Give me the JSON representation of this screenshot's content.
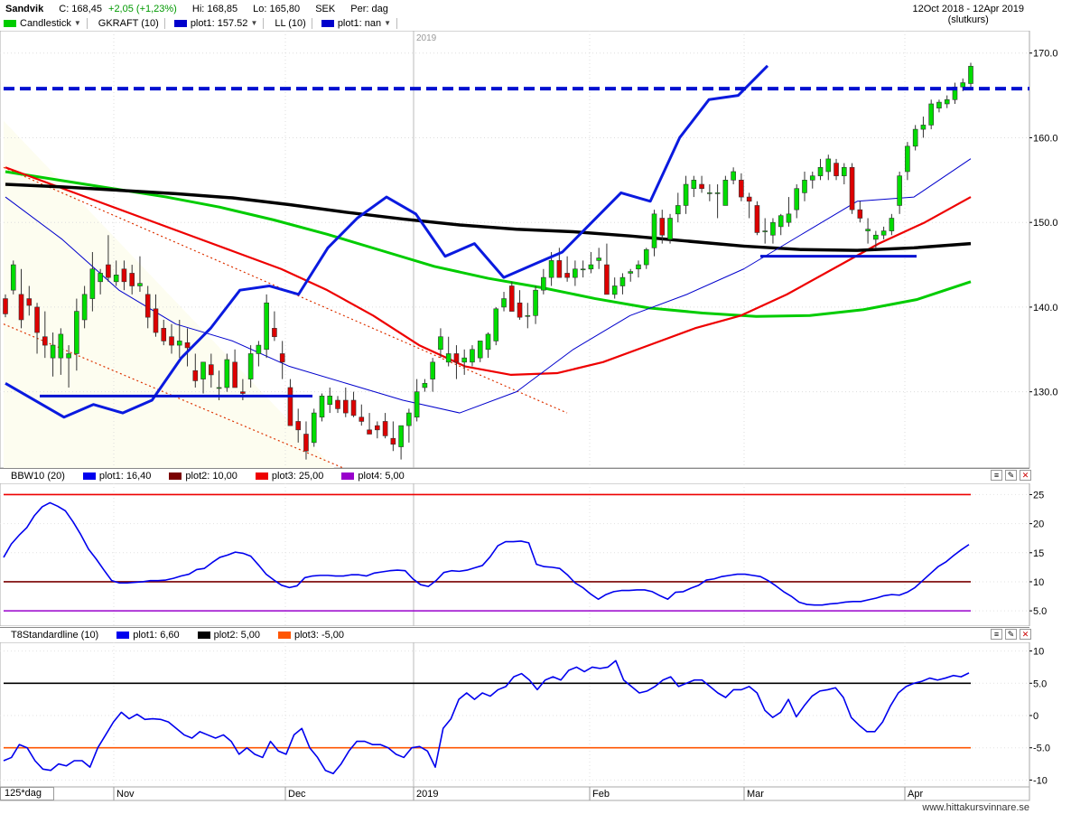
{
  "header": {
    "symbol": "Sandvik",
    "close": "C: 168,45",
    "change": "+2,05 (+1,23%)",
    "hi": "Hi: 168,85",
    "lo": "Lo: 165,80",
    "currency": "SEK",
    "period": "Per: dag",
    "date_range": "12Oct 2018 - 12Apr 2019",
    "price_type": "(slutkurs)"
  },
  "legend_main": [
    {
      "label": "Candlestick",
      "color": "#00cc00",
      "dropdown": true
    },
    {
      "label": "GKRAFT (10)",
      "color": "",
      "dropdown": false
    },
    {
      "label": "plot1: 157.52",
      "color": "#0000cc",
      "dropdown": true
    },
    {
      "label": "LL (10)",
      "color": "",
      "dropdown": false
    },
    {
      "label": "plot1: nan",
      "color": "#0000cc",
      "dropdown": true
    }
  ],
  "legend_bbw": [
    {
      "label": "BBW10 (20)",
      "color": ""
    },
    {
      "label": "plot1: 16,40",
      "color": "#0000ee"
    },
    {
      "label": "plot2: 10,00",
      "color": "#7a0000"
    },
    {
      "label": "plot3: 25,00",
      "color": "#ee0000"
    },
    {
      "label": "plot4: 5,00",
      "color": "#9900cc"
    }
  ],
  "legend_t8": [
    {
      "label": "T8Standardline (10)",
      "color": ""
    },
    {
      "label": "plot1: 6,60",
      "color": "#0000ee"
    },
    {
      "label": "plot2: 5,00",
      "color": "#000000"
    },
    {
      "label": "plot3: -5,00",
      "color": "#ff5500"
    }
  ],
  "footer": {
    "resolution": "125*dag",
    "watermark": "www.hittakursvinnare.se",
    "year_marker": "2019"
  },
  "colors": {
    "up": "#00dd00",
    "down": "#dd0000",
    "sma_black": "#000000",
    "sma_green": "#00cc00",
    "sma_red": "#ee0000",
    "indicator_blue": "#0000ee"
  },
  "chart_data": [
    {
      "type": "candlestick",
      "name": "Sandvik",
      "ylim": [
        121,
        172
      ],
      "y_ticks": [
        "170.0",
        "160.0",
        "150.0",
        "140.0",
        "130.0"
      ],
      "x_ticks": [
        "Nov",
        "Dec",
        "2019",
        "Feb",
        "Mar",
        "Apr"
      ],
      "candles_ohlc": [
        [
          141.0,
          141.5,
          138.8,
          139.2
        ],
        [
          142.0,
          145.5,
          141.5,
          145.0
        ],
        [
          141.5,
          144.5,
          137.5,
          138.5
        ],
        [
          141.0,
          142.5,
          139.0,
          140.2
        ],
        [
          140.0,
          140.5,
          134.5,
          137.0
        ],
        [
          136.5,
          139.5,
          134.0,
          135.5
        ],
        [
          134.0,
          137.0,
          131.8,
          135.5
        ],
        [
          134.0,
          137.5,
          132.0,
          136.8
        ],
        [
          134.0,
          135.5,
          130.5,
          134.5
        ],
        [
          134.5,
          141.0,
          132.5,
          139.5
        ],
        [
          138.5,
          142.5,
          137.5,
          141.5
        ],
        [
          141.0,
          146.5,
          139.5,
          144.5
        ],
        [
          143.0,
          144.5,
          141.5,
          144.0
        ],
        [
          145.0,
          148.5,
          143.0,
          143.5
        ],
        [
          143.0,
          145.5,
          142.5,
          143.8
        ],
        [
          144.5,
          145.5,
          142.0,
          143.0
        ],
        [
          144.0,
          145.0,
          141.5,
          142.5
        ],
        [
          142.5,
          146.0,
          141.8,
          142.8
        ],
        [
          141.5,
          142.5,
          137.5,
          138.8
        ],
        [
          139.8,
          141.5,
          136.5,
          137.0
        ],
        [
          137.5,
          138.5,
          135.5,
          136.0
        ],
        [
          136.5,
          138.0,
          134.5,
          135.5
        ],
        [
          135.5,
          138.5,
          134.0,
          136.0
        ],
        [
          135.8,
          137.5,
          133.0,
          135.2
        ],
        [
          132.5,
          134.5,
          130.5,
          131.3
        ],
        [
          131.5,
          133.5,
          129.8,
          133.5
        ],
        [
          133.2,
          134.5,
          130.5,
          132.0
        ],
        [
          130.5,
          132.5,
          129.0,
          130.5
        ],
        [
          130.5,
          134.5,
          130.0,
          133.8
        ],
        [
          133.5,
          135.0,
          131.5,
          130.5
        ],
        [
          130.0,
          131.5,
          129.0,
          129.8
        ],
        [
          131.5,
          135.5,
          130.5,
          134.5
        ],
        [
          134.5,
          136.0,
          133.0,
          135.5
        ],
        [
          135.0,
          141.5,
          134.0,
          140.5
        ],
        [
          137.5,
          139.5,
          136.0,
          136.5
        ],
        [
          134.5,
          136.0,
          131.5,
          133.5
        ],
        [
          130.5,
          131.5,
          126.0,
          126.0
        ],
        [
          126.5,
          128.0,
          124.0,
          125.5
        ],
        [
          125.0,
          126.5,
          122.0,
          123.0
        ],
        [
          124.0,
          128.0,
          123.5,
          127.5
        ],
        [
          127.0,
          129.8,
          126.5,
          129.5
        ],
        [
          128.5,
          130.5,
          127.5,
          129.5
        ],
        [
          129.0,
          129.5,
          127.5,
          128.0
        ],
        [
          129.0,
          130.5,
          127.0,
          127.5
        ],
        [
          129.0,
          130.0,
          127.0,
          127.2
        ],
        [
          127.0,
          128.5,
          126.0,
          126.5
        ],
        [
          125.5,
          127.5,
          125.0,
          125.0
        ],
        [
          126.0,
          126.5,
          124.5,
          125.5
        ],
        [
          126.5,
          127.5,
          124.5,
          124.8
        ],
        [
          124.5,
          126.5,
          123.0,
          123.8
        ],
        [
          123.5,
          125.5,
          122.0,
          126.0
        ],
        [
          126.0,
          128.0,
          124.0,
          127.5
        ],
        [
          127.0,
          131.5,
          126.5,
          130.0
        ],
        [
          130.5,
          131.5,
          130.0,
          131.0
        ],
        [
          131.5,
          134.0,
          130.0,
          133.5
        ],
        [
          135.0,
          137.5,
          134.0,
          136.5
        ],
        [
          133.5,
          136.5,
          133.0,
          134.5
        ],
        [
          134.5,
          135.5,
          131.5,
          133.5
        ],
        [
          133.5,
          135.0,
          132.0,
          134.0
        ],
        [
          133.5,
          135.5,
          133.0,
          135.0
        ],
        [
          134.0,
          136.0,
          133.5,
          136.0
        ],
        [
          135.0,
          137.0,
          134.0,
          136.8
        ],
        [
          136.0,
          140.0,
          135.5,
          139.8
        ],
        [
          140.0,
          141.8,
          139.5,
          141.0
        ],
        [
          142.5,
          143.0,
          139.5,
          139.5
        ],
        [
          140.5,
          142.0,
          138.5,
          138.8
        ],
        [
          139.0,
          140.5,
          137.5,
          139.0
        ],
        [
          139.0,
          142.5,
          138.0,
          142.0
        ],
        [
          142.0,
          144.5,
          141.5,
          143.5
        ],
        [
          143.5,
          146.5,
          142.5,
          145.5
        ],
        [
          145.5,
          147.0,
          144.5,
          143.5
        ],
        [
          144.0,
          146.0,
          143.0,
          143.5
        ],
        [
          143.5,
          145.5,
          142.5,
          144.5
        ],
        [
          144.5,
          145.5,
          143.5,
          144.5
        ],
        [
          144.5,
          146.5,
          144.0,
          145.0
        ],
        [
          145.5,
          147.0,
          144.5,
          145.8
        ],
        [
          145.0,
          147.5,
          141.5,
          141.5
        ],
        [
          141.5,
          143.5,
          141.0,
          142.5
        ],
        [
          142.5,
          144.0,
          141.5,
          143.5
        ],
        [
          144.0,
          144.5,
          143.0,
          144.2
        ],
        [
          144.5,
          145.5,
          143.5,
          145.0
        ],
        [
          145.0,
          147.0,
          144.5,
          146.8
        ],
        [
          147.0,
          151.5,
          146.0,
          151.0
        ],
        [
          150.5,
          151.5,
          147.5,
          148.5
        ],
        [
          148.0,
          151.0,
          147.5,
          150.5
        ],
        [
          151.0,
          153.5,
          150.0,
          152.0
        ],
        [
          152.0,
          155.5,
          151.0,
          154.5
        ],
        [
          154.0,
          155.5,
          153.0,
          155.0
        ],
        [
          154.5,
          155.5,
          153.5,
          154.0
        ],
        [
          153.5,
          154.5,
          152.5,
          153.5
        ],
        [
          153.5,
          154.5,
          150.5,
          153.5
        ],
        [
          152.0,
          155.5,
          152.0,
          155.0
        ],
        [
          155.0,
          156.5,
          154.5,
          156.0
        ],
        [
          155.0,
          155.8,
          152.5,
          153.0
        ],
        [
          153.0,
          153.5,
          150.5,
          152.5
        ],
        [
          152.0,
          152.5,
          148.5,
          148.8
        ],
        [
          149.0,
          150.5,
          147.5,
          149.0
        ],
        [
          148.5,
          150.5,
          147.5,
          150.0
        ],
        [
          149.5,
          151.0,
          148.5,
          150.8
        ],
        [
          150.0,
          153.0,
          149.5,
          151.0
        ],
        [
          151.5,
          154.5,
          150.5,
          154.0
        ],
        [
          153.5,
          156.0,
          152.5,
          155.0
        ],
        [
          155.0,
          156.0,
          154.0,
          155.5
        ],
        [
          155.5,
          157.5,
          155.0,
          156.5
        ],
        [
          156.0,
          158.0,
          155.0,
          157.5
        ],
        [
          157.0,
          157.5,
          155.0,
          155.5
        ],
        [
          155.5,
          157.0,
          154.5,
          156.5
        ],
        [
          156.5,
          157.0,
          151.0,
          151.5
        ],
        [
          151.5,
          152.5,
          150.0,
          150.5
        ],
        [
          149.0,
          150.5,
          147.5,
          149.2
        ],
        [
          148.0,
          149.0,
          147.0,
          148.5
        ],
        [
          148.5,
          149.5,
          148.0,
          149.0
        ],
        [
          149.0,
          151.0,
          148.5,
          150.5
        ],
        [
          152.0,
          156.0,
          151.0,
          155.5
        ],
        [
          156.0,
          159.5,
          155.0,
          159.0
        ],
        [
          159.0,
          161.5,
          158.5,
          161.0
        ],
        [
          161.0,
          162.5,
          160.0,
          161.5
        ],
        [
          161.5,
          164.5,
          161.0,
          164.0
        ],
        [
          163.5,
          164.5,
          163.0,
          164.2
        ],
        [
          164.0,
          165.0,
          163.5,
          164.5
        ],
        [
          164.5,
          166.5,
          164.0,
          166.0
        ],
        [
          166.0,
          167.0,
          165.5,
          166.5
        ],
        [
          166.4,
          168.85,
          165.8,
          168.45
        ]
      ],
      "lines": [
        {
          "name": "SMA black (approx.)",
          "color": "#000000",
          "values": [
            154.5,
            154.2,
            153.8,
            153.4,
            152.9,
            152.1,
            151.2,
            150.4,
            149.7,
            149.2,
            148.9,
            148.4,
            147.8,
            147.2,
            146.8,
            146.7,
            147.0,
            147.5
          ]
        },
        {
          "name": "SMA green (approx.)",
          "color": "#00cc00",
          "values": [
            156.0,
            155.0,
            154.0,
            153.0,
            151.8,
            150.3,
            148.6,
            146.7,
            144.8,
            143.4,
            142.3,
            141.0,
            139.9,
            139.3,
            138.9,
            139.0,
            139.7,
            140.9,
            143.0
          ]
        },
        {
          "name": "SMA red (approx.)",
          "color": "#ee0000",
          "values": [
            156.5,
            154.5,
            152.5,
            150.5,
            148.5,
            146.5,
            144.5,
            142.0,
            139.0,
            135.5,
            133.0,
            132.0,
            132.2,
            133.5,
            135.5,
            137.5,
            139.0,
            141.5,
            144.5,
            147.5,
            150.0,
            153.0
          ]
        },
        {
          "name": "GKRAFT (approx.)",
          "color": "#0000cc",
          "values": [
            153.0,
            148.0,
            142.0,
            138.0,
            136.0,
            133.0,
            131.0,
            129.0,
            127.5,
            130.0,
            135.0,
            139.0,
            141.5,
            144.5,
            148.5,
            152.5,
            153.0,
            157.52
          ]
        },
        {
          "name": "LL (approx.)",
          "color": "#0000ee",
          "values": [
            131.0,
            129.0,
            127.0,
            128.5,
            127.5,
            129.0,
            134.0,
            137.5,
            142.0,
            142.5,
            141.5,
            147.0,
            150.5,
            153.0,
            151.0,
            146.0,
            147.5,
            143.5,
            145.0,
            146.5,
            150.0,
            153.5,
            152.5,
            160.0,
            164.5,
            165.0,
            168.5
          ]
        }
      ],
      "horizontal_levels": [
        165.8,
        129.5,
        146.0
      ]
    },
    {
      "type": "line",
      "name": "BBW10 (20)",
      "ylim": [
        3,
        26
      ],
      "y_ticks": [
        "25",
        "20",
        "15",
        "10",
        "5.0"
      ],
      "reference_levels": [
        {
          "value": 25,
          "color": "#ee0000"
        },
        {
          "value": 10,
          "color": "#7a0000"
        },
        {
          "value": 5,
          "color": "#9900cc"
        }
      ],
      "values": [
        14.2,
        16.5,
        18.0,
        19.3,
        21.4,
        22.9,
        23.6,
        23.0,
        22.2,
        20.3,
        18.1,
        15.6,
        13.9,
        12.0,
        10.2,
        9.8,
        9.8,
        9.9,
        10.0,
        10.2,
        10.2,
        10.3,
        10.6,
        11.0,
        11.3,
        12.1,
        12.3,
        13.3,
        14.2,
        14.6,
        15.1,
        14.9,
        14.4,
        12.9,
        11.3,
        10.3,
        9.4,
        9.0,
        9.3,
        10.7,
        11.0,
        11.1,
        11.1,
        11.0,
        11.0,
        11.2,
        11.2,
        11.0,
        11.5,
        11.7,
        11.9,
        12.0,
        11.9,
        10.5,
        9.5,
        9.2,
        10.2,
        11.6,
        11.9,
        11.8,
        12.0,
        12.4,
        12.8,
        14.3,
        16.2,
        16.9,
        16.9,
        17.0,
        16.7,
        13.0,
        12.6,
        12.5,
        12.3,
        11.2,
        9.8,
        9.0,
        7.9,
        7.0,
        7.8,
        8.3,
        8.5,
        8.5,
        8.6,
        8.6,
        8.3,
        7.6,
        7.0,
        8.2,
        8.3,
        8.9,
        9.4,
        10.3,
        10.5,
        10.9,
        11.1,
        11.3,
        11.3,
        11.1,
        10.9,
        10.2,
        9.3,
        8.3,
        7.5,
        6.5,
        6.1,
        6.0,
        6.0,
        6.2,
        6.3,
        6.5,
        6.6,
        6.6,
        6.9,
        7.2,
        7.6,
        7.8,
        7.7,
        8.2,
        9.0,
        10.2,
        11.4,
        12.6,
        13.4,
        14.5,
        15.5,
        16.4
      ]
    },
    {
      "type": "line",
      "name": "T8Standardline (10)",
      "ylim": [
        -10.5,
        10.5
      ],
      "y_ticks": [
        "10",
        "5.0",
        "0",
        "-5.0",
        "-10"
      ],
      "reference_levels": [
        {
          "value": 5,
          "color": "#000000"
        },
        {
          "value": -5,
          "color": "#ff5500"
        }
      ],
      "values": [
        -7.0,
        -6.5,
        -4.5,
        -5.0,
        -7.0,
        -8.3,
        -8.5,
        -7.5,
        -7.8,
        -7.0,
        -7.0,
        -8.0,
        -5.0,
        -3.0,
        -1.0,
        0.5,
        -0.5,
        0.2,
        -0.6,
        -0.5,
        -0.6,
        -1.0,
        -2.0,
        -3.0,
        -3.5,
        -2.5,
        -3.0,
        -3.5,
        -3.0,
        -4.0,
        -6.0,
        -5.0,
        -6.0,
        -6.5,
        -4.0,
        -5.5,
        -6.0,
        -3.0,
        -2.0,
        -5.0,
        -6.5,
        -8.5,
        -9.0,
        -7.5,
        -5.5,
        -4.0,
        -4.0,
        -4.5,
        -4.5,
        -5.0,
        -6.0,
        -6.5,
        -5.0,
        -4.8,
        -5.5,
        -8.0,
        -2.0,
        -0.5,
        2.5,
        3.5,
        2.5,
        3.5,
        3.0,
        4.0,
        4.5,
        6.0,
        6.5,
        5.5,
        4.0,
        5.5,
        6.0,
        5.5,
        7.0,
        7.5,
        6.8,
        7.5,
        7.3,
        7.5,
        8.5,
        5.5,
        4.5,
        3.5,
        3.8,
        4.5,
        5.5,
        6.0,
        4.5,
        5.0,
        5.5,
        5.5,
        4.5,
        3.5,
        2.8,
        4.0,
        4.0,
        4.5,
        3.5,
        0.8,
        -0.3,
        0.5,
        2.5,
        -0.2,
        1.5,
        3.0,
        3.8,
        4.0,
        4.3,
        2.8,
        -0.3,
        -1.5,
        -2.5,
        -2.5,
        -1.0,
        1.5,
        3.5,
        4.5,
        5.0,
        5.3,
        5.8,
        5.5,
        5.8,
        6.2,
        6.0,
        6.6
      ]
    }
  ]
}
